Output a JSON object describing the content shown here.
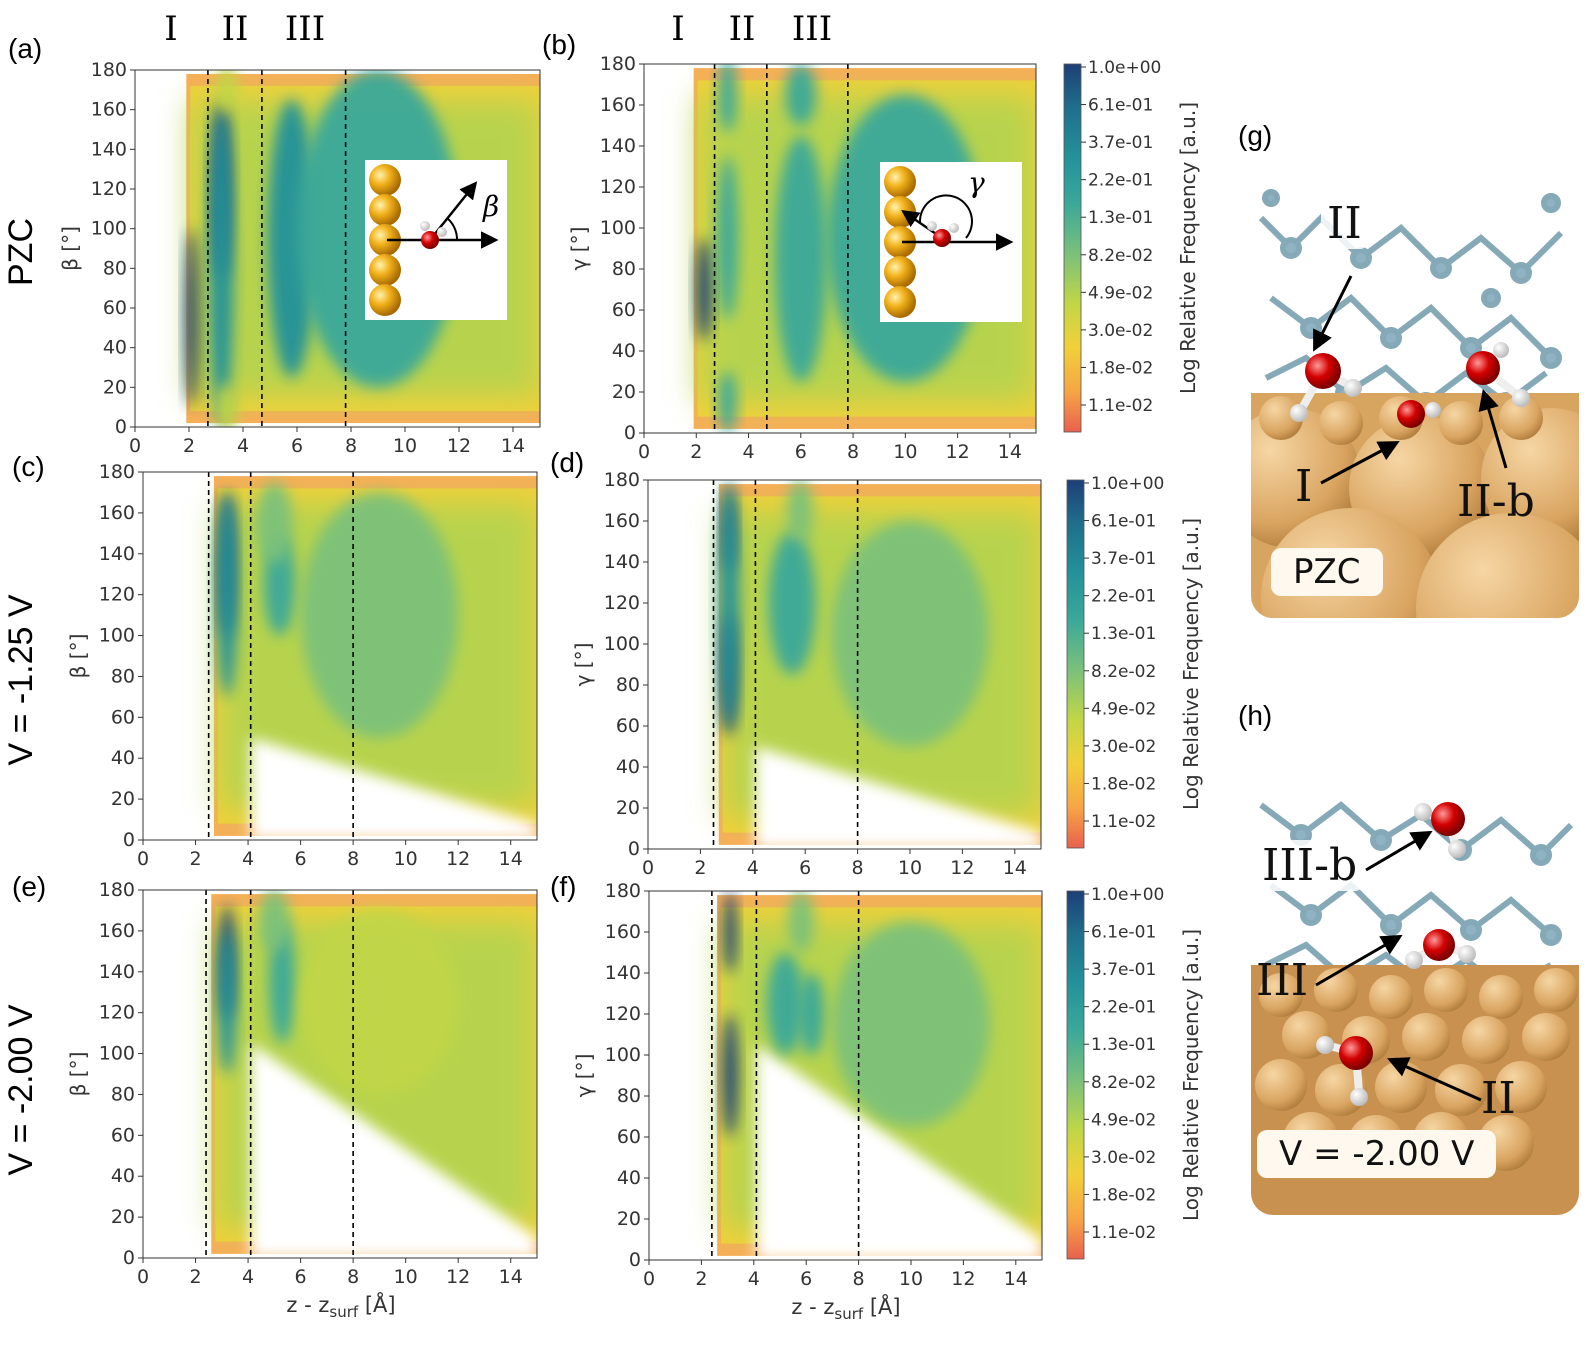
{
  "zones": [
    "I",
    "II",
    "III"
  ],
  "rows": [
    {
      "label": "PZC",
      "beta_panel": "(a)",
      "gamma_panel": "(b)",
      "zone_bounds": [
        2.7,
        4.7,
        7.8
      ]
    },
    {
      "label": "V =  -1.25 V",
      "beta_panel": "(c)",
      "gamma_panel": "(d)",
      "zone_bounds": [
        2.5,
        4.1,
        8.0
      ]
    },
    {
      "label": "V =  -2.00 V",
      "beta_panel": "(e)",
      "gamma_panel": "(f)",
      "zone_bounds": [
        2.4,
        4.1,
        8.0
      ]
    }
  ],
  "colorbar": {
    "label": "Log Relative Frequency [a.u.]",
    "ticks": [
      "1.0e+00",
      "6.1e-01",
      "3.7e-01",
      "2.2e-01",
      "1.3e-01",
      "8.2e-02",
      "4.9e-02",
      "3.0e-02",
      "1.8e-02",
      "1.1e-02"
    ],
    "colors": [
      "#1d3f77",
      "#1f6f8c",
      "#23919a",
      "#3ba89a",
      "#7cc17a",
      "#c1d646",
      "#f2d03a",
      "#f6a545",
      "#ef7a4e"
    ]
  },
  "insets": {
    "beta_symbol": "β",
    "gamma_symbol": "γ"
  },
  "chart_data": [
    {
      "panel": "(a)",
      "type": "heatmap",
      "xlabel": "",
      "ylabel": "β [°]",
      "xlim": [
        0,
        15
      ],
      "ylim": [
        0,
        180
      ],
      "xticks": [
        "0",
        "2",
        "4",
        "6",
        "8",
        "10",
        "12",
        "14"
      ],
      "yticks": [
        "0",
        "20",
        "40",
        "60",
        "80",
        "100",
        "120",
        "140",
        "160",
        "180"
      ],
      "zone_boundaries": [
        2.7,
        4.7,
        7.8
      ],
      "zone_labels": [
        "I",
        "II",
        "III"
      ]
    },
    {
      "panel": "(b)",
      "type": "heatmap",
      "xlabel": "",
      "ylabel": "γ [°]",
      "xlim": [
        0,
        15
      ],
      "ylim": [
        0,
        180
      ],
      "xticks": [
        "0",
        "2",
        "4",
        "6",
        "8",
        "10",
        "12",
        "14"
      ],
      "yticks": [
        "0",
        "20",
        "40",
        "60",
        "80",
        "100",
        "120",
        "140",
        "160",
        "180"
      ],
      "zone_boundaries": [
        2.7,
        4.7,
        7.8
      ],
      "zone_labels": [
        "I",
        "II",
        "III"
      ]
    },
    {
      "panel": "(c)",
      "type": "heatmap",
      "xlabel": "",
      "ylabel": "β [°]",
      "xlim": [
        0,
        15
      ],
      "ylim": [
        0,
        180
      ],
      "xticks": [
        "0",
        "2",
        "4",
        "6",
        "8",
        "10",
        "12",
        "14"
      ],
      "yticks": [
        "0",
        "20",
        "40",
        "60",
        "80",
        "100",
        "120",
        "140",
        "160",
        "180"
      ],
      "zone_boundaries": [
        2.5,
        4.1,
        8.0
      ]
    },
    {
      "panel": "(d)",
      "type": "heatmap",
      "xlabel": "",
      "ylabel": "γ [°]",
      "xlim": [
        0,
        15
      ],
      "ylim": [
        0,
        180
      ],
      "xticks": [
        "0",
        "2",
        "4",
        "6",
        "8",
        "10",
        "12",
        "14"
      ],
      "yticks": [
        "0",
        "20",
        "40",
        "60",
        "80",
        "100",
        "120",
        "140",
        "160",
        "180"
      ],
      "zone_boundaries": [
        2.5,
        4.1,
        8.0
      ]
    },
    {
      "panel": "(e)",
      "type": "heatmap",
      "xlabel": "z - z",
      "xlabel_sub": "surf",
      "xlabel_unit": " [Å]",
      "ylabel": "β [°]",
      "xlim": [
        0,
        15
      ],
      "ylim": [
        0,
        180
      ],
      "xticks": [
        "0",
        "2",
        "4",
        "6",
        "8",
        "10",
        "12",
        "14"
      ],
      "yticks": [
        "0",
        "20",
        "40",
        "60",
        "80",
        "100",
        "120",
        "140",
        "160",
        "180"
      ],
      "zone_boundaries": [
        2.4,
        4.1,
        8.0
      ]
    },
    {
      "panel": "(f)",
      "type": "heatmap",
      "xlabel": "z - z",
      "xlabel_sub": "surf",
      "xlabel_unit": " [Å]",
      "ylabel": "γ [°]",
      "xlim": [
        0,
        15
      ],
      "ylim": [
        0,
        180
      ],
      "xticks": [
        "0",
        "2",
        "4",
        "6",
        "8",
        "10",
        "12",
        "14"
      ],
      "yticks": [
        "0",
        "20",
        "40",
        "60",
        "80",
        "100",
        "120",
        "140",
        "160",
        "180"
      ],
      "zone_boundaries": [
        2.4,
        4.1,
        8.0
      ]
    }
  ],
  "molecular_panels": [
    {
      "panel": "(g)",
      "state": "PZC",
      "labels": [
        "II",
        "I",
        "II-b"
      ]
    },
    {
      "panel": "(h)",
      "state": "V = -2.00 V",
      "labels": [
        "III-b",
        "III",
        "II"
      ]
    }
  ]
}
